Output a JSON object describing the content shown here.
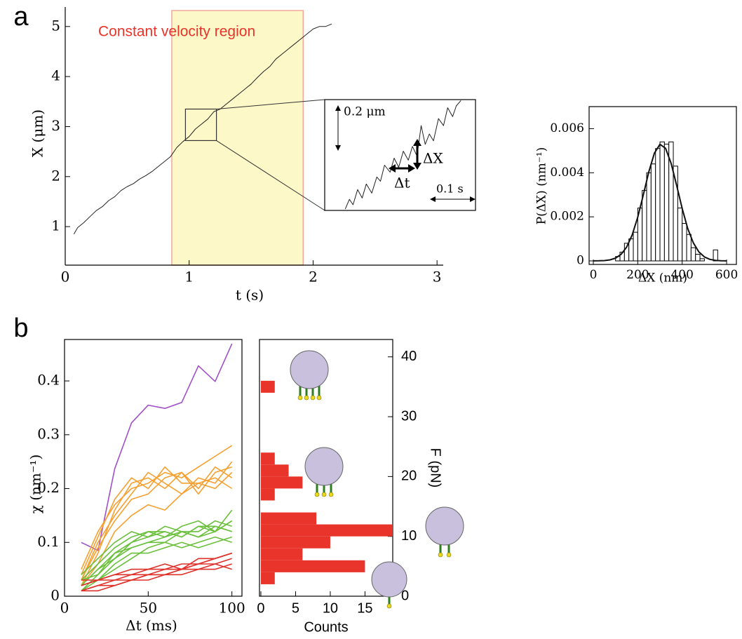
{
  "chart_data": [
    {
      "type": "line",
      "panel_label": "a",
      "annotation": "Constant velocity region",
      "xlabel": "t (s)",
      "ylabel": "X (μm)",
      "x": [
        0.07,
        0.1,
        0.15,
        0.2,
        0.25,
        0.3,
        0.35,
        0.4,
        0.45,
        0.5,
        0.55,
        0.6,
        0.65,
        0.7,
        0.75,
        0.8,
        0.85,
        0.9,
        0.95,
        1.0,
        1.05,
        1.1,
        1.15,
        1.2,
        1.25,
        1.3,
        1.35,
        1.4,
        1.45,
        1.5,
        1.55,
        1.6,
        1.65,
        1.7,
        1.75,
        1.8,
        1.85,
        1.9,
        1.95,
        2.0,
        2.05,
        2.1,
        2.15
      ],
      "values": [
        0.85,
        0.98,
        1.08,
        1.2,
        1.32,
        1.4,
        1.52,
        1.6,
        1.72,
        1.8,
        1.86,
        1.95,
        2.02,
        2.1,
        2.2,
        2.3,
        2.4,
        2.58,
        2.7,
        2.8,
        2.95,
        3.05,
        3.15,
        3.3,
        3.35,
        3.45,
        3.55,
        3.65,
        3.75,
        3.85,
        3.98,
        4.1,
        4.2,
        4.35,
        4.45,
        4.55,
        4.65,
        4.75,
        4.85,
        4.95,
        5.0,
        5.0,
        5.05
      ],
      "color": "#222222",
      "region": [
        0.86,
        1.92
      ],
      "region_color": "#fdf8c8",
      "zoom_box": {
        "x": [
          0.97,
          1.22
        ],
        "y": [
          2.72,
          3.35
        ]
      },
      "xlim": [
        0,
        3.05
      ],
      "ylim": [
        0.23,
        5.39
      ],
      "xticks": [
        0,
        1,
        2,
        3
      ],
      "yticks": [
        1,
        2,
        3,
        4,
        5
      ]
    },
    {
      "type": "line",
      "annotations": [
        "0.2 μm",
        "ΔX",
        "Δt",
        "0.1 s"
      ],
      "x": [
        0.045,
        0.054,
        0.062,
        0.072,
        0.082,
        0.091,
        0.103,
        0.114,
        0.122,
        0.131,
        0.143,
        0.152,
        0.162,
        0.172,
        0.183,
        0.192,
        0.202,
        0.211,
        0.22,
        0.229,
        0.238,
        0.249,
        0.26,
        0.269,
        0.28,
        0.288,
        0.298
      ],
      "values": [
        0.006,
        0.049,
        0.025,
        0.092,
        0.055,
        0.117,
        0.077,
        0.148,
        0.129,
        0.2,
        0.169,
        0.231,
        0.191,
        0.262,
        0.222,
        0.283,
        0.24,
        0.375,
        0.292,
        0.338,
        0.308,
        0.406,
        0.375,
        0.454,
        0.415,
        0.462,
        0.486
      ],
      "color": "#222222",
      "xlim": [
        0,
        0.33
      ],
      "ylim": [
        0,
        0.49
      ]
    },
    {
      "type": "histogram",
      "xlabel": "ΔX (nm)",
      "ylabel": "P(ΔX) (nm⁻¹)",
      "bins": [
        100,
        120,
        140,
        160,
        180,
        200,
        220,
        240,
        260,
        280,
        300,
        320,
        340,
        360,
        380,
        400,
        420,
        440,
        460,
        480,
        500,
        520,
        540,
        560
      ],
      "values": [
        0.0002,
        0.0004,
        0.0008,
        0.001,
        0.0013,
        0.0024,
        0.0032,
        0.004,
        0.0044,
        0.0051,
        0.0054,
        0.0053,
        0.0054,
        0.0043,
        0.0024,
        0.0017,
        0.0012,
        0.0006,
        0.0003,
        0.0001,
        0,
        0,
        0.0005
      ],
      "color": "#ffffff",
      "fit": {
        "x": [
          0,
          25,
          50,
          75,
          100,
          125,
          150,
          175,
          200,
          225,
          250,
          275,
          300,
          325,
          350,
          375,
          400,
          425,
          450,
          475,
          500,
          525,
          550,
          575,
          600
        ],
        "values": [
          1e-06,
          5e-06,
          1.6e-05,
          4.8e-05,
          0.000126,
          0.000297,
          0.000626,
          0.00118,
          0.00199,
          0.003,
          0.00405,
          0.00489,
          0.00529,
          0.00511,
          0.00443,
          0.00343,
          0.00238,
          0.00147,
          0.00082,
          0.00041,
          0.00018,
          7e-05,
          2.5e-05,
          8e-06,
          2e-06
        ],
        "color": "#111111"
      },
      "xlim": [
        -19,
        644
      ],
      "ylim": [
        -0.00016,
        0.007
      ],
      "xticks": [
        0,
        200,
        400,
        600
      ],
      "yticks": [
        0,
        0.002,
        0.004,
        0.006
      ]
    },
    {
      "type": "line",
      "panel_label": "b",
      "xlabel": "Δt (ms)",
      "ylabel": "χ (nm⁻¹)",
      "x": [
        10,
        20,
        30,
        40,
        50,
        60,
        70,
        80,
        90,
        100
      ],
      "series": [
        {
          "color": "#a050c8",
          "values": [
            0.1,
            0.085,
            0.237,
            0.322,
            0.355,
            0.349,
            0.36,
            0.428,
            0.399,
            0.469
          ]
        },
        {
          "color": "#f5a030",
          "values": [
            0.05,
            0.12,
            0.17,
            0.2,
            0.21,
            0.23,
            0.22,
            0.24,
            0.26,
            0.28
          ]
        },
        {
          "color": "#f5a030",
          "values": [
            0.03,
            0.1,
            0.15,
            0.19,
            0.23,
            0.21,
            0.19,
            0.22,
            0.21,
            0.25
          ]
        },
        {
          "color": "#f5a030",
          "values": [
            0.02,
            0.08,
            0.16,
            0.21,
            0.22,
            0.2,
            0.23,
            0.2,
            0.24,
            0.22
          ]
        },
        {
          "color": "#f5a030",
          "values": [
            0.04,
            0.11,
            0.18,
            0.22,
            0.2,
            0.24,
            0.21,
            0.21,
            0.22,
            0.2
          ]
        },
        {
          "color": "#f5a030",
          "values": [
            0.02,
            0.06,
            0.12,
            0.15,
            0.17,
            0.16,
            0.19,
            0.21,
            0.2,
            0.23
          ]
        },
        {
          "color": "#f5a030",
          "values": [
            0.03,
            0.09,
            0.14,
            0.18,
            0.19,
            0.22,
            0.23,
            0.19,
            0.23,
            0.24
          ]
        },
        {
          "color": "#6abf3c",
          "values": [
            0.02,
            0.05,
            0.08,
            0.1,
            0.11,
            0.12,
            0.11,
            0.13,
            0.12,
            0.14
          ]
        },
        {
          "color": "#6abf3c",
          "values": [
            0.01,
            0.04,
            0.07,
            0.09,
            0.1,
            0.1,
            0.12,
            0.11,
            0.13,
            0.12
          ]
        },
        {
          "color": "#6abf3c",
          "values": [
            0.03,
            0.06,
            0.09,
            0.11,
            0.12,
            0.11,
            0.13,
            0.14,
            0.12,
            0.16
          ]
        },
        {
          "color": "#6abf3c",
          "values": [
            0.02,
            0.03,
            0.05,
            0.07,
            0.09,
            0.1,
            0.09,
            0.1,
            0.11,
            0.1
          ]
        },
        {
          "color": "#6abf3c",
          "values": [
            0.04,
            0.07,
            0.1,
            0.12,
            0.11,
            0.13,
            0.12,
            0.12,
            0.14,
            0.13
          ]
        },
        {
          "color": "#6abf3c",
          "values": [
            0.01,
            0.03,
            0.06,
            0.08,
            0.08,
            0.09,
            0.1,
            0.09,
            0.1,
            0.11
          ]
        },
        {
          "color": "#6abf3c",
          "values": [
            0.02,
            0.05,
            0.07,
            0.1,
            0.12,
            0.12,
            0.11,
            0.13,
            0.13,
            0.12
          ]
        },
        {
          "color": "#6abf3c",
          "values": [
            0.03,
            0.04,
            0.08,
            0.09,
            0.1,
            0.11,
            0.12,
            0.11,
            0.12,
            0.14
          ]
        },
        {
          "color": "#e0302a",
          "values": [
            0.01,
            0.02,
            0.03,
            0.03,
            0.04,
            0.04,
            0.05,
            0.05,
            0.06,
            0.07
          ]
        },
        {
          "color": "#e0302a",
          "values": [
            0.02,
            0.03,
            0.03,
            0.04,
            0.04,
            0.05,
            0.05,
            0.06,
            0.07,
            0.08
          ]
        },
        {
          "color": "#e0302a",
          "values": [
            0.01,
            0.01,
            0.02,
            0.03,
            0.03,
            0.04,
            0.04,
            0.05,
            0.05,
            0.06
          ]
        },
        {
          "color": "#e0302a",
          "values": [
            0.02,
            0.03,
            0.04,
            0.04,
            0.05,
            0.05,
            0.06,
            0.06,
            0.07,
            0.08
          ]
        },
        {
          "color": "#e0302a",
          "values": [
            0.01,
            0.02,
            0.02,
            0.03,
            0.04,
            0.04,
            0.05,
            0.06,
            0.06,
            0.05
          ]
        },
        {
          "color": "#e0302a",
          "values": [
            0.03,
            0.03,
            0.04,
            0.05,
            0.05,
            0.06,
            0.05,
            0.07,
            0.07,
            0.08
          ]
        }
      ],
      "xlim": [
        0,
        106
      ],
      "ylim": [
        0,
        0.477
      ],
      "xticks": [
        0,
        50,
        100
      ],
      "yticks": [
        0,
        0.1,
        0.2,
        0.3,
        0.4
      ]
    },
    {
      "type": "histogram",
      "orientation": "horizontal",
      "xlabel": "Counts",
      "ylabel": "F (pN)",
      "bins": [
        2,
        4,
        6,
        8,
        10,
        12,
        14,
        16,
        18,
        20,
        22,
        24,
        26,
        28,
        30,
        32,
        34,
        36
      ],
      "values": [
        2,
        15,
        6,
        10,
        19,
        8,
        0,
        2,
        6,
        4,
        2,
        0,
        0,
        0,
        0,
        0,
        2
      ],
      "color": "#e8342a",
      "xlim": [
        -0.2,
        19
      ],
      "ylim": [
        0,
        42.9
      ],
      "xticks": [
        0,
        5,
        10,
        15
      ],
      "yticks": [
        0,
        10,
        20,
        30,
        40
      ]
    }
  ]
}
